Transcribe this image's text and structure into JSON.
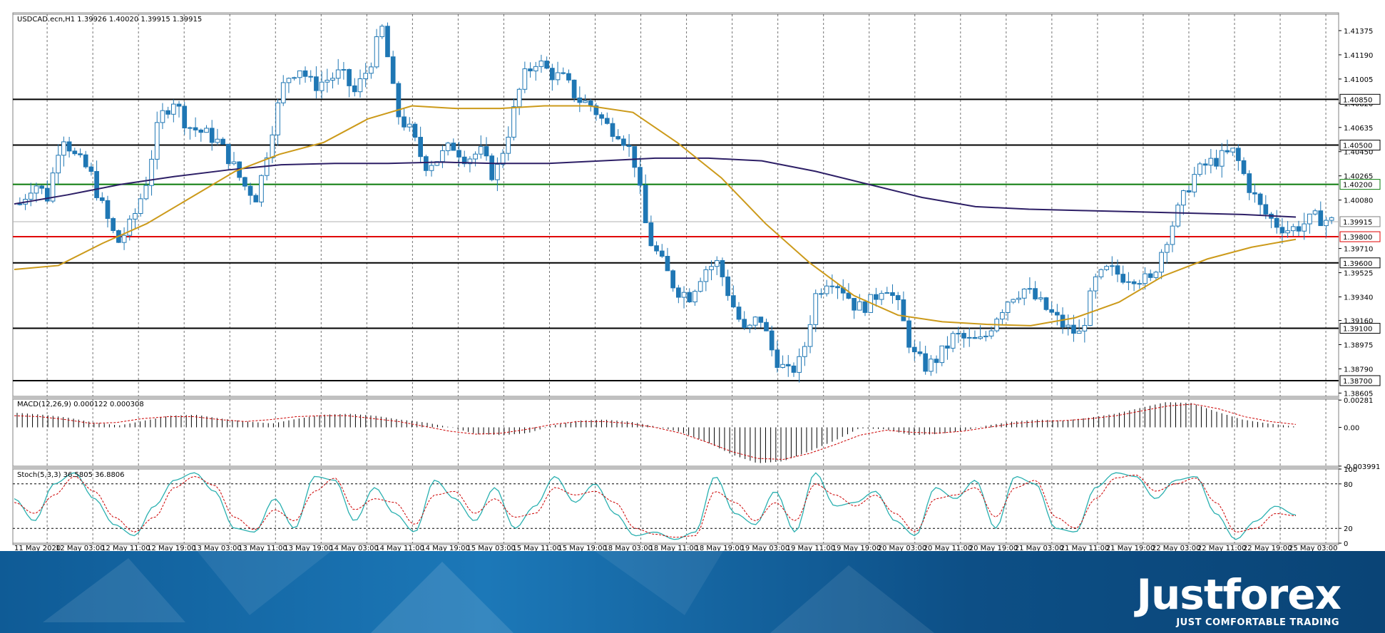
{
  "chart_data": [
    {
      "type": "candlestick",
      "title": "USDCAD.ecn,H1 1.39926 1.40020 1.39915 1.39915",
      "ylim": [
        1.3858,
        1.415
      ],
      "x_tick_labels": [
        "11 May 2020",
        "12 May 03:00",
        "12 May 11:00",
        "12 May 19:00",
        "13 May 03:00",
        "13 May 11:00",
        "13 May 19:00",
        "14 May 03:00",
        "14 May 11:00",
        "14 May 19:00",
        "15 May 03:00",
        "15 May 11:00",
        "15 May 19:00",
        "18 May 03:00",
        "18 May 11:00",
        "18 May 19:00",
        "19 May 03:00",
        "19 May 11:00",
        "19 May 19:00",
        "20 May 03:00",
        "20 May 11:00",
        "20 May 19:00",
        "21 May 03:00",
        "21 May 11:00",
        "21 May 19:00",
        "22 May 03:00",
        "22 May 11:00",
        "22 May 19:00",
        "25 May 03:00"
      ],
      "y_tick_labels": [
        "1.41375",
        "1.41190",
        "1.41005",
        "1.40820",
        "1.40635",
        "1.40450",
        "1.40265",
        "1.40080",
        "1.39710",
        "1.39525",
        "1.39340",
        "1.39160",
        "1.38975",
        "1.38790",
        "1.38605"
      ],
      "levels": [
        {
          "value": 1.4085,
          "label": "1.40850",
          "color": "#000000"
        },
        {
          "value": 1.405,
          "label": "1.40500",
          "color": "#000000"
        },
        {
          "value": 1.402,
          "label": "1.40200",
          "color": "#0a7a0a"
        },
        {
          "value": 1.398,
          "label": "1.39800",
          "color": "#e00000"
        },
        {
          "value": 1.396,
          "label": "1.39600",
          "color": "#000000"
        },
        {
          "value": 1.391,
          "label": "1.39100",
          "color": "#000000"
        },
        {
          "value": 1.387,
          "label": "1.38700",
          "color": "#000000"
        }
      ],
      "current_price": {
        "value": 1.39915,
        "label": "1.39915"
      },
      "price_path": [
        1.4005,
        1.4022,
        1.401,
        1.406,
        1.404,
        1.403,
        1.4,
        1.3975,
        1.399,
        1.402,
        1.407,
        1.4085,
        1.4065,
        1.406,
        1.4055,
        1.404,
        1.402,
        1.401,
        1.406,
        1.41,
        1.411,
        1.4095,
        1.41,
        1.4105,
        1.409,
        1.411,
        1.414,
        1.4075,
        1.406,
        1.4035,
        1.404,
        1.405,
        1.404,
        1.4045,
        1.4025,
        1.406,
        1.41,
        1.4115,
        1.4105,
        1.41,
        1.4085,
        1.408,
        1.4065,
        1.406,
        1.404,
        1.398,
        1.396,
        1.394,
        1.3935,
        1.3955,
        1.396,
        1.393,
        1.3905,
        1.392,
        1.389,
        1.3875,
        1.3885,
        1.3935,
        1.395,
        1.394,
        1.3925,
        1.393,
        1.3945,
        1.3925,
        1.389,
        1.388,
        1.389,
        1.3905,
        1.39,
        1.39,
        1.392,
        1.3935,
        1.394,
        1.393,
        1.392,
        1.391,
        1.3905,
        1.3945,
        1.3955,
        1.395,
        1.395,
        1.3945,
        1.3975,
        1.4,
        1.4025,
        1.4035,
        1.404,
        1.4045,
        1.402,
        1.4,
        1.399,
        1.3985,
        1.399,
        1.3995,
        1.39915
      ],
      "ma_slow": [
        1.4005,
        1.4012,
        1.402,
        1.4026,
        1.4031,
        1.4035,
        1.4036,
        1.4036,
        1.4037,
        1.4036,
        1.4036,
        1.4038,
        1.404,
        1.404,
        1.4038,
        1.403,
        1.402,
        1.401,
        1.4003,
        1.4001,
        1.4,
        1.3999,
        1.3998,
        1.3997,
        1.3995
      ],
      "ma_fast": [
        1.3955,
        1.3958,
        1.3975,
        1.399,
        1.401,
        1.403,
        1.4043,
        1.4052,
        1.407,
        1.408,
        1.4078,
        1.4078,
        1.408,
        1.408,
        1.4075,
        1.4052,
        1.4025,
        1.399,
        1.396,
        1.3935,
        1.392,
        1.3915,
        1.3913,
        1.3912,
        1.3918,
        1.393,
        1.395,
        1.3963,
        1.3972,
        1.3978
      ]
    },
    {
      "type": "histogram",
      "title": "MACD(12,26,9) 0.000122 0.000308",
      "ylim": [
        -0.004,
        0.0029
      ],
      "y_tick_labels": [
        "0.00281",
        "0.00",
        "-0.003991"
      ],
      "values": [
        0.0015,
        0.0013,
        0.001,
        0.0005,
        0.0002,
        0.0007,
        0.0012,
        0.0013,
        0.0009,
        0.0006,
        0.0004,
        0.0009,
        0.0013,
        0.0014,
        0.0012,
        0.0008,
        0.0005,
        0.0,
        -0.0007,
        -0.0008,
        -0.0006,
        0.0002,
        0.0007,
        0.0008,
        0.0006,
        0.0001,
        -0.0005,
        -0.0015,
        -0.0028,
        -0.0037,
        -0.0035,
        -0.0025,
        -0.0014,
        -0.0001,
        -0.0002,
        -0.0008,
        -0.0007,
        -0.0004,
        0.0002,
        0.0006,
        0.0008,
        0.0007,
        0.001,
        0.0014,
        0.002,
        0.0026,
        0.0025,
        0.0016,
        0.0008,
        0.0004,
        0.0001
      ],
      "signal": [
        0.0012,
        0.0011,
        0.0008,
        0.0004,
        0.0005,
        0.0009,
        0.0011,
        0.0011,
        0.0008,
        0.0006,
        0.0008,
        0.0011,
        0.0012,
        0.0012,
        0.0009,
        0.0006,
        0.0001,
        -0.0004,
        -0.0007,
        -0.0006,
        -0.0002,
        0.0003,
        0.0006,
        0.0006,
        0.0004,
        0.0,
        -0.0006,
        -0.0015,
        -0.0025,
        -0.0032,
        -0.0033,
        -0.0027,
        -0.0018,
        -0.0008,
        -0.0003,
        -0.0005,
        -0.0006,
        -0.0004,
        0.0,
        0.0004,
        0.0006,
        0.0007,
        0.0009,
        0.0012,
        0.0017,
        0.0022,
        0.0024,
        0.0019,
        0.0011,
        0.0006,
        0.0003
      ]
    },
    {
      "type": "line",
      "title": "Stoch(5,3,3) 36.5805 36.8806",
      "ylim": [
        0,
        100
      ],
      "y_tick_labels": [
        "100",
        "80",
        "20",
        "0"
      ],
      "levels": [
        80,
        20
      ],
      "main": [
        60,
        30,
        80,
        95,
        60,
        25,
        10,
        50,
        85,
        95,
        70,
        20,
        15,
        60,
        20,
        90,
        85,
        30,
        75,
        40,
        15,
        85,
        60,
        30,
        75,
        20,
        50,
        90,
        55,
        80,
        40,
        10,
        15,
        5,
        15,
        90,
        40,
        25,
        70,
        15,
        95,
        50,
        55,
        70,
        30,
        10,
        75,
        60,
        85,
        20,
        90,
        80,
        20,
        15,
        75,
        95,
        90,
        60,
        85,
        90,
        40,
        5,
        30,
        50,
        38
      ],
      "signal": [
        55,
        40,
        65,
        90,
        70,
        35,
        15,
        35,
        75,
        90,
        78,
        35,
        18,
        45,
        30,
        70,
        88,
        45,
        60,
        55,
        25,
        65,
        70,
        40,
        60,
        35,
        40,
        75,
        65,
        70,
        55,
        20,
        12,
        8,
        10,
        70,
        55,
        30,
        55,
        30,
        80,
        65,
        50,
        65,
        40,
        15,
        60,
        65,
        75,
        35,
        75,
        85,
        35,
        20,
        60,
        88,
        92,
        70,
        80,
        88,
        55,
        15,
        20,
        40,
        37
      ]
    }
  ],
  "branding": {
    "logo_text": "Justforex",
    "tagline": "JUST COMFORTABLE TRADING"
  },
  "colors": {
    "bull": "#1f77b4",
    "bear": "#1f77b4",
    "ma_slow": "#2d1f66",
    "ma_fast": "#cc9a1a",
    "stoch_main": "#2ab0b0",
    "stoch_signal": "#cc0000",
    "macd_signal": "#cc0000"
  }
}
